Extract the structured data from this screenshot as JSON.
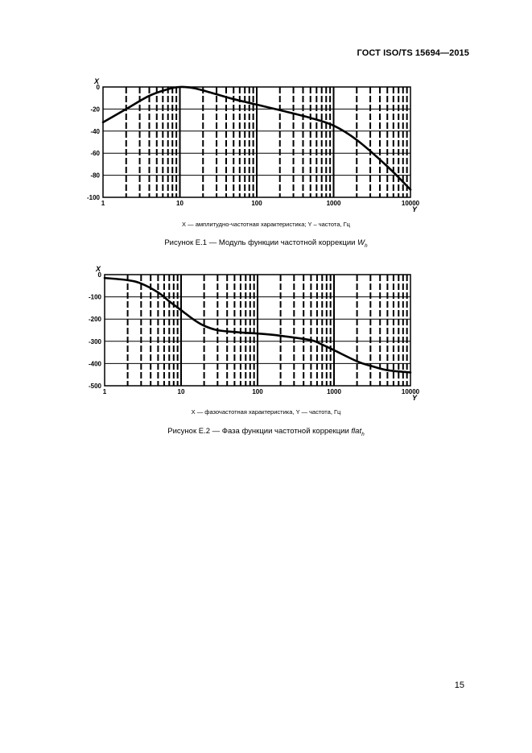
{
  "header": {
    "doc_id": "ГОСТ ISO/TS 15694—2015"
  },
  "page_number": "15",
  "figures": [
    {
      "legend": "X — амплитудно-частотная характеристика; Y – частота, Гц",
      "caption_prefix": "Рисунок Е.1 — Модуль функции частотной коррекции ",
      "caption_symbol": "W",
      "caption_sub": "h"
    },
    {
      "legend": "X — фазочастотная характеристика, Y — частота, Гц",
      "caption_prefix": "Рисунок Е.2 — Фаза функции частотной коррекции ",
      "caption_symbol": "flat",
      "caption_sub": "h"
    }
  ],
  "chart_data": [
    {
      "type": "line",
      "title": "",
      "ylabel": "X",
      "xlabel": "Y",
      "x_scale": "log",
      "xlim": [
        1,
        10000
      ],
      "ylim": [
        -100,
        0
      ],
      "x_ticks": [
        "1",
        "10",
        "100",
        "1000",
        "10000"
      ],
      "y_ticks": [
        "0",
        "-20",
        "-40",
        "-60",
        "-80",
        "-100"
      ],
      "grid": true,
      "series": [
        {
          "x": [
            1,
            2,
            4,
            7,
            10,
            15,
            25,
            50,
            100,
            200,
            500,
            1000,
            2000,
            5000,
            10000
          ],
          "y": [
            -32,
            -20,
            -8,
            -2,
            0,
            -1,
            -5,
            -11,
            -16,
            -21,
            -28,
            -35,
            -48,
            -72,
            -93
          ]
        }
      ]
    },
    {
      "type": "line",
      "title": "",
      "ylabel": "X",
      "xlabel": "Y",
      "x_scale": "log",
      "xlim": [
        1,
        10000
      ],
      "ylim": [
        -500,
        0
      ],
      "x_ticks": [
        "1",
        "10",
        "100",
        "1000",
        "10000"
      ],
      "y_ticks": [
        "0",
        "-100",
        "-200",
        "-300",
        "-400",
        "-500"
      ],
      "grid": true,
      "series": [
        {
          "x": [
            1,
            2,
            3,
            5,
            7,
            10,
            15,
            20,
            30,
            50,
            70,
            100,
            200,
            500,
            700,
            1000,
            2000,
            3000,
            5000,
            10000
          ],
          "y": [
            -15,
            -25,
            -40,
            -80,
            -120,
            -160,
            -205,
            -230,
            -250,
            -258,
            -262,
            -265,
            -275,
            -295,
            -315,
            -340,
            -390,
            -410,
            -430,
            -440
          ]
        }
      ]
    }
  ]
}
